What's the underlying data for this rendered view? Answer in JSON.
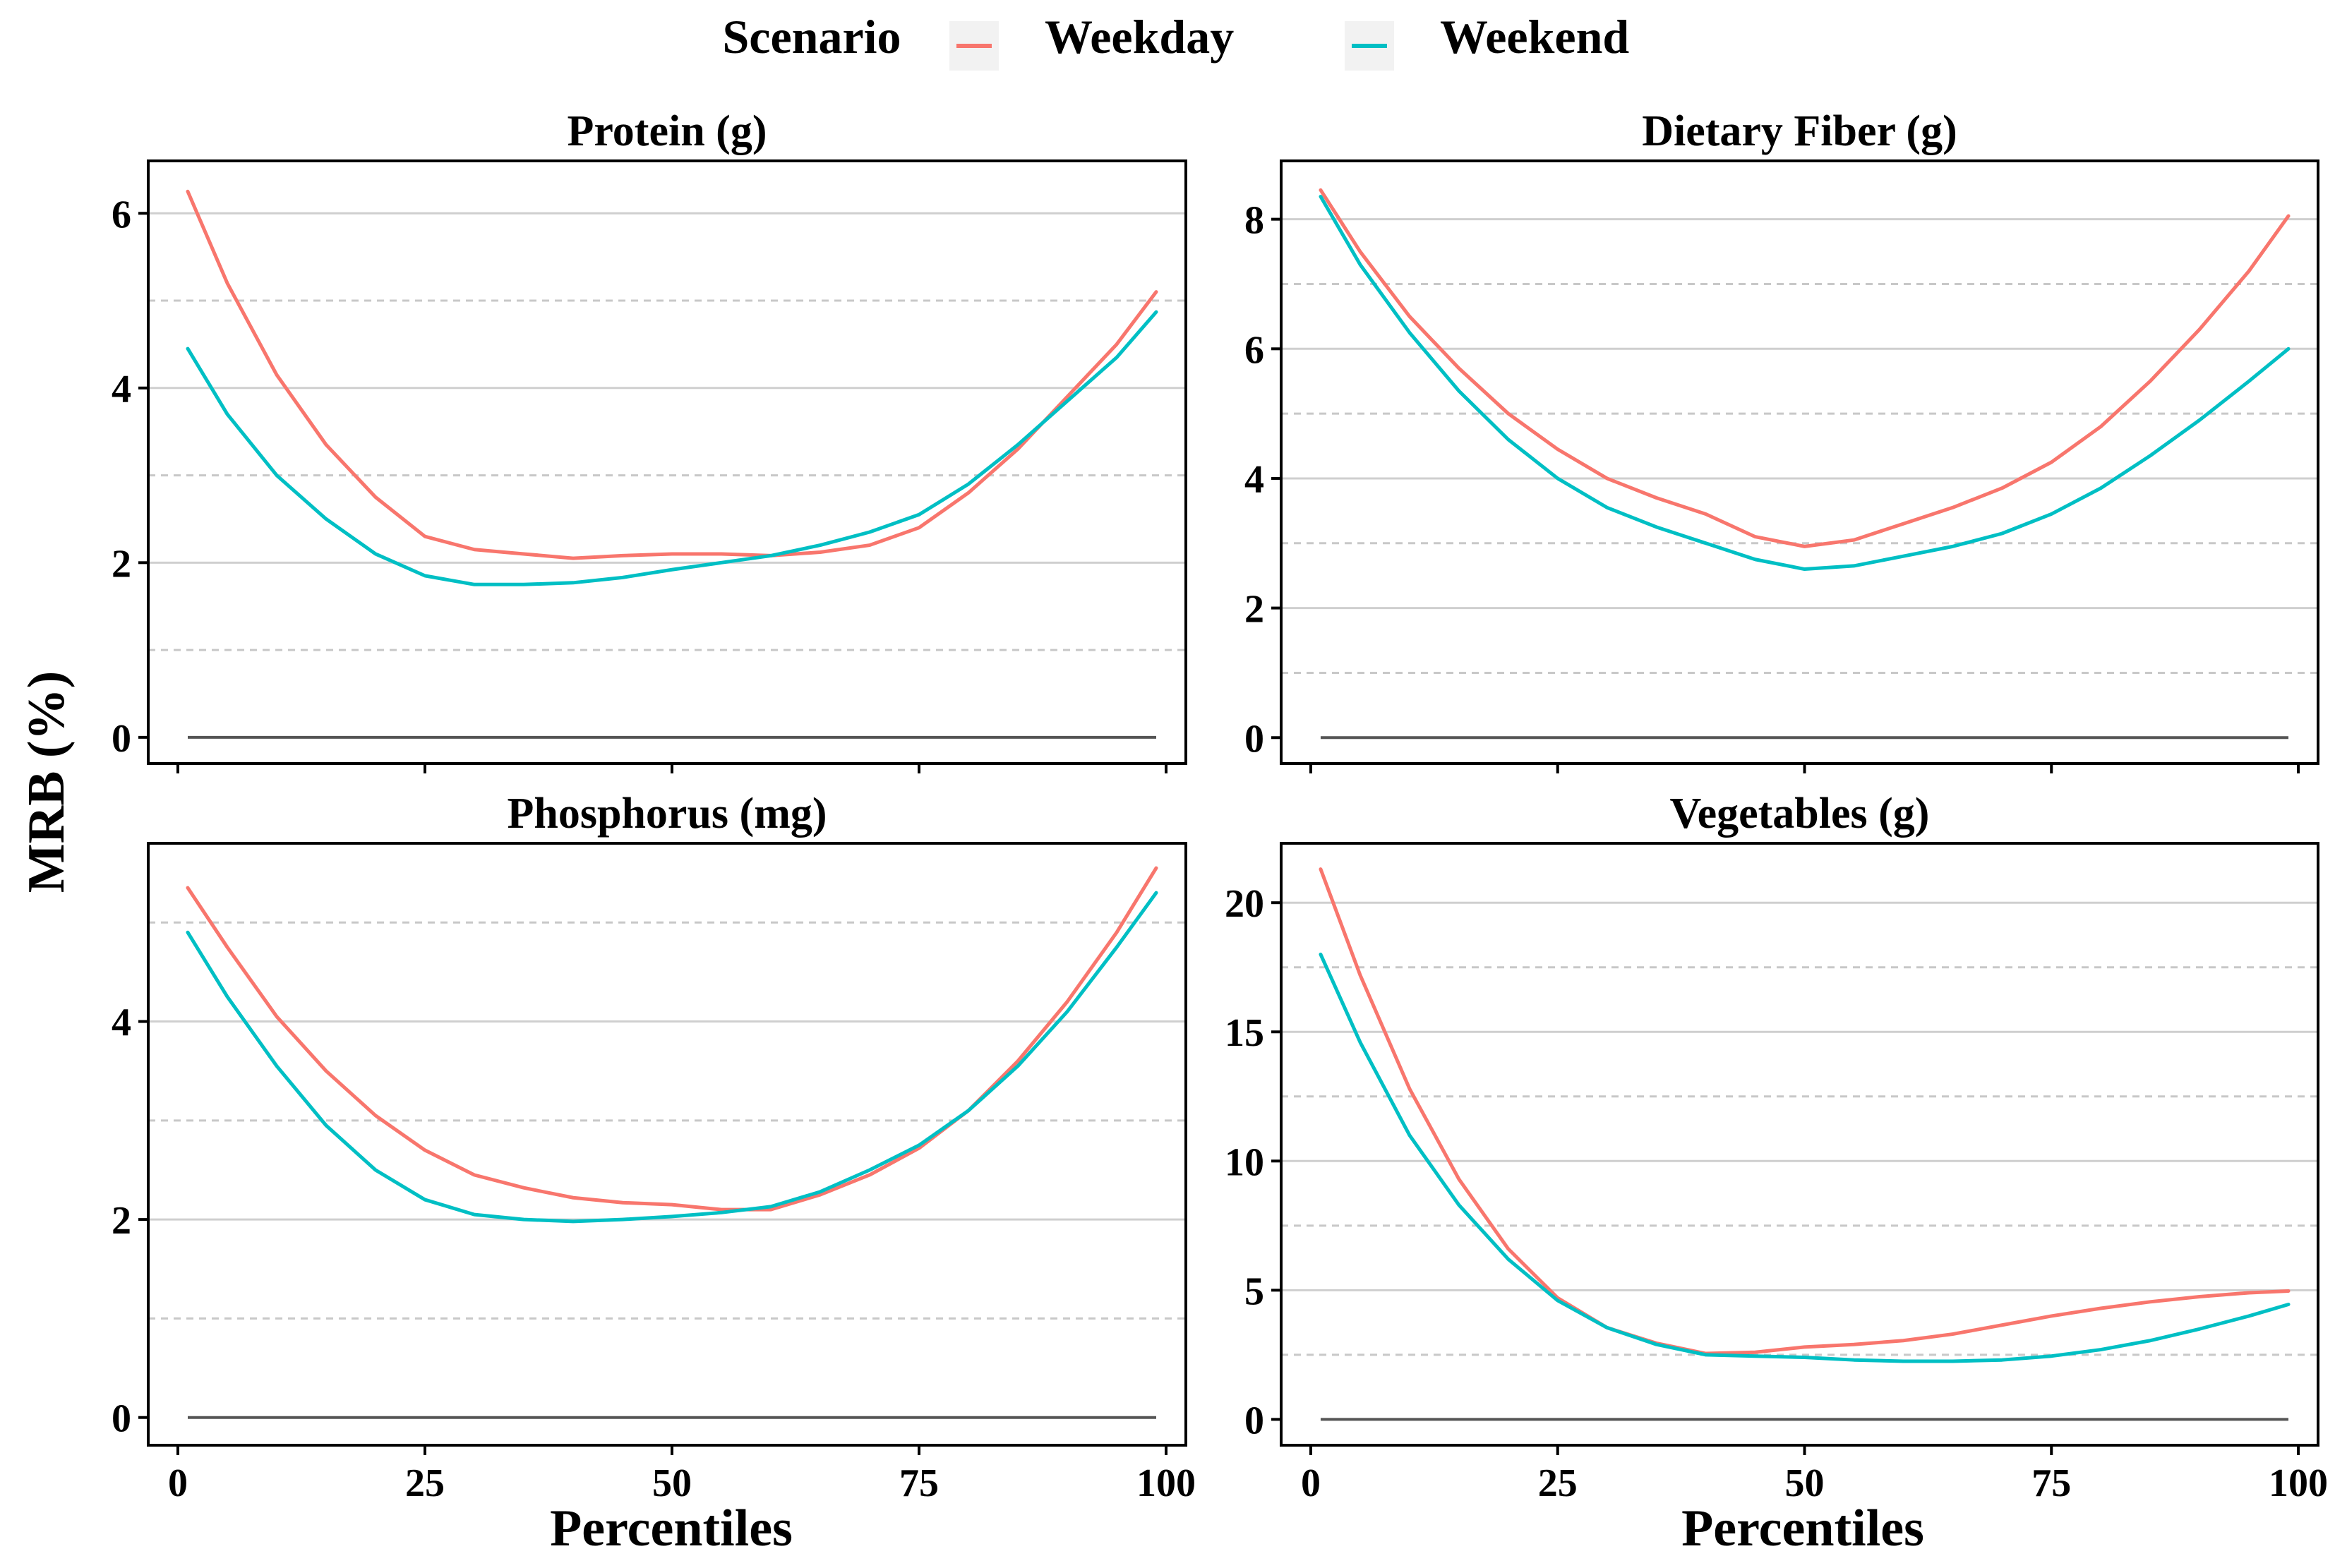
{
  "legend": {
    "title": "Scenario",
    "items": [
      {
        "label": "Weekday",
        "color": "#F8766D"
      },
      {
        "label": "Weekend",
        "color": "#00BFC4"
      }
    ]
  },
  "shared": {
    "ylabel": "MRB (%)",
    "xlabel": "Percentiles",
    "xlim": [
      -3,
      102
    ],
    "xticks": [
      0,
      25,
      50,
      75,
      100
    ]
  },
  "chart_data": [
    {
      "type": "line",
      "title": "Protein (g)",
      "ylim": [
        -0.3,
        6.6
      ],
      "yticks": [
        0,
        2,
        4,
        6
      ],
      "yminor": [
        1,
        3,
        5
      ],
      "x": [
        1,
        5,
        10,
        15,
        20,
        25,
        30,
        35,
        40,
        45,
        50,
        55,
        60,
        65,
        70,
        75,
        80,
        85,
        90,
        95,
        99
      ],
      "series": [
        {
          "name": "Weekday",
          "values": [
            6.25,
            5.2,
            4.15,
            3.35,
            2.75,
            2.3,
            2.15,
            2.1,
            2.05,
            2.08,
            2.1,
            2.1,
            2.08,
            2.12,
            2.2,
            2.4,
            2.8,
            3.3,
            3.9,
            4.5,
            5.1
          ]
        },
        {
          "name": "Weekend",
          "values": [
            4.45,
            3.7,
            3.0,
            2.5,
            2.1,
            1.85,
            1.75,
            1.75,
            1.77,
            1.83,
            1.92,
            2.0,
            2.08,
            2.2,
            2.35,
            2.55,
            2.9,
            3.35,
            3.85,
            4.35,
            4.87
          ]
        }
      ]
    },
    {
      "type": "line",
      "title": "Dietary Fiber (g)",
      "ylim": [
        -0.4,
        8.9
      ],
      "yticks": [
        0,
        2,
        4,
        6,
        8
      ],
      "yminor": [
        1,
        3,
        5,
        7
      ],
      "x": [
        1,
        5,
        10,
        15,
        20,
        25,
        30,
        35,
        40,
        45,
        50,
        55,
        60,
        65,
        70,
        75,
        80,
        85,
        90,
        95,
        99
      ],
      "series": [
        {
          "name": "Weekday",
          "values": [
            8.45,
            7.5,
            6.5,
            5.7,
            5.0,
            4.45,
            4.0,
            3.7,
            3.45,
            3.1,
            2.95,
            3.05,
            3.3,
            3.55,
            3.85,
            4.25,
            4.8,
            5.5,
            6.3,
            7.2,
            8.05
          ]
        },
        {
          "name": "Weekend",
          "values": [
            8.35,
            7.3,
            6.25,
            5.35,
            4.6,
            4.0,
            3.55,
            3.25,
            3.0,
            2.75,
            2.6,
            2.65,
            2.8,
            2.95,
            3.15,
            3.45,
            3.85,
            4.35,
            4.9,
            5.5,
            6.0
          ]
        }
      ]
    },
    {
      "type": "line",
      "title": "Phosphorus (mg)",
      "ylim": [
        -0.28,
        5.8
      ],
      "yticks": [
        0,
        2,
        4
      ],
      "yminor": [
        1,
        3,
        5
      ],
      "x": [
        1,
        5,
        10,
        15,
        20,
        25,
        30,
        35,
        40,
        45,
        50,
        55,
        60,
        65,
        70,
        75,
        80,
        85,
        90,
        95,
        99
      ],
      "series": [
        {
          "name": "Weekday",
          "values": [
            5.35,
            4.75,
            4.05,
            3.5,
            3.05,
            2.7,
            2.45,
            2.32,
            2.22,
            2.17,
            2.15,
            2.1,
            2.1,
            2.25,
            2.45,
            2.72,
            3.1,
            3.6,
            4.2,
            4.9,
            5.55
          ]
        },
        {
          "name": "Weekend",
          "values": [
            4.9,
            4.25,
            3.55,
            2.95,
            2.5,
            2.2,
            2.05,
            2.0,
            1.98,
            2.0,
            2.03,
            2.07,
            2.13,
            2.28,
            2.5,
            2.75,
            3.1,
            3.55,
            4.1,
            4.75,
            5.3
          ]
        }
      ]
    },
    {
      "type": "line",
      "title": "Vegetables (g)",
      "ylim": [
        -1.0,
        22.3
      ],
      "yticks": [
        0,
        5,
        10,
        15,
        20
      ],
      "yminor": [
        2.5,
        7.5,
        12.5,
        17.5
      ],
      "x": [
        1,
        5,
        10,
        15,
        20,
        25,
        30,
        35,
        40,
        45,
        50,
        55,
        60,
        65,
        70,
        75,
        80,
        85,
        90,
        95,
        99
      ],
      "series": [
        {
          "name": "Weekday",
          "values": [
            21.3,
            17.2,
            12.8,
            9.3,
            6.6,
            4.7,
            3.55,
            2.95,
            2.55,
            2.6,
            2.8,
            2.9,
            3.05,
            3.3,
            3.65,
            4.0,
            4.3,
            4.55,
            4.75,
            4.9,
            4.97
          ]
        },
        {
          "name": "Weekend",
          "values": [
            18.0,
            14.6,
            11.0,
            8.3,
            6.2,
            4.6,
            3.55,
            2.9,
            2.5,
            2.45,
            2.4,
            2.3,
            2.25,
            2.25,
            2.3,
            2.45,
            2.7,
            3.05,
            3.5,
            4.0,
            4.45
          ]
        }
      ]
    }
  ]
}
